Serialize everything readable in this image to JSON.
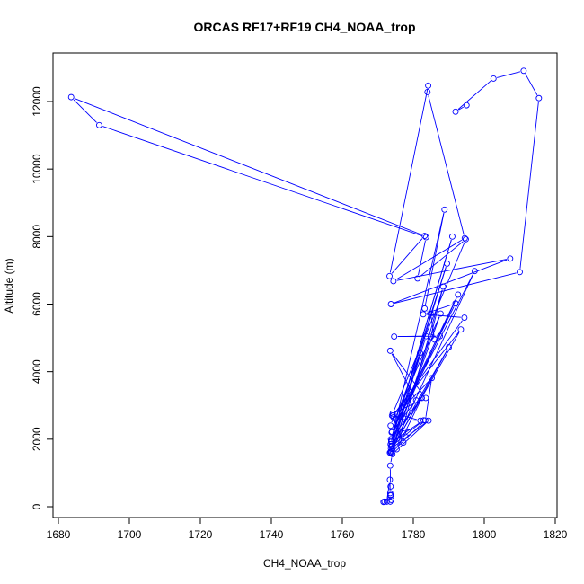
{
  "chart_data": {
    "type": "line",
    "title": "ORCAS RF17+RF19 CH4_NOAA_trop",
    "xlabel": "CH4_NOAA_trop",
    "ylabel": "Altitude (m)",
    "xlim": [
      1680,
      1820
    ],
    "ylim": [
      0,
      12900
    ],
    "xticks": [
      1680,
      1700,
      1720,
      1740,
      1760,
      1780,
      1800,
      1820
    ],
    "yticks": [
      0,
      2000,
      4000,
      6000,
      8000,
      10000,
      12000
    ],
    "grid": false,
    "legend": "none",
    "markers": "open-circle",
    "color": "#0000ff",
    "series": [
      {
        "x": [
          1773.5,
          1773.6,
          1773.8,
          1773.5,
          1773.4,
          1772.5,
          1771.6,
          1771.9,
          1773.6,
          1773.6,
          1773.5,
          1774.1,
          1784.3,
          1773.7,
          1773.6,
          1774.0,
          1782.9,
          1773.8,
          1778.6,
          1773.6,
          1774.4,
          1777.2,
          1774.0,
          1775.0,
          1782.0,
          1775.5,
          1785.2,
          1783.4,
          1773.8,
          1784.9,
          1788.4,
          1775.3,
          1782.4,
          1773.7,
          1789.5,
          1773.8,
          1790.0,
          1773.8,
          1787.7,
          1774.9,
          1781.9,
          1774.1,
          1797.3,
          1773.9,
          1792.6,
          1773.8,
          1791.0,
          1773.6,
          1788.8,
          1783.2,
          1784.9,
          1786.0,
          1787.5,
          1774.6,
          1783.6,
          1773.4,
          1793.4,
          1774.3,
          1794.4,
          1782.8,
          1791.9,
          1774.0,
          1780.8,
          1773.5,
          1783.5,
          1774.2,
          1794.8,
          1781.2,
          1783.6,
          1691.5,
          1683.6,
          1783.2,
          1773.3,
          1784.2,
          1784.0,
          1794.5,
          1774.4,
          1807.3,
          1773.7,
          1810.0,
          1815.4,
          1811.1,
          1802.6,
          1791.9,
          1795.0
        ],
        "y": [
          150,
          330,
          200,
          400,
          800,
          150,
          140,
          150,
          350,
          600,
          1220,
          1560,
          2550,
          1720,
          1620,
          1800,
          2560,
          1920,
          2200,
          2400,
          2650,
          1900,
          2700,
          2600,
          2550,
          2750,
          3810,
          2560,
          1600,
          5030,
          6520,
          1700,
          3220,
          2000,
          7200,
          1800,
          4720,
          1650,
          5720,
          2600,
          4550,
          1700,
          6980,
          2200,
          6280,
          1950,
          8000,
          1850,
          8800,
          5870,
          5720,
          4950,
          5050,
          5040,
          5050,
          1600,
          5250,
          2700,
          5600,
          5700,
          6020,
          2220,
          3150,
          4620,
          3220,
          2760,
          7920,
          6760,
          7980,
          11300,
          12130,
          8020,
          6830,
          12470,
          12280,
          7950,
          6680,
          7350,
          6000,
          6950,
          12100,
          12910,
          12680,
          11700,
          11890
        ]
      }
    ]
  }
}
